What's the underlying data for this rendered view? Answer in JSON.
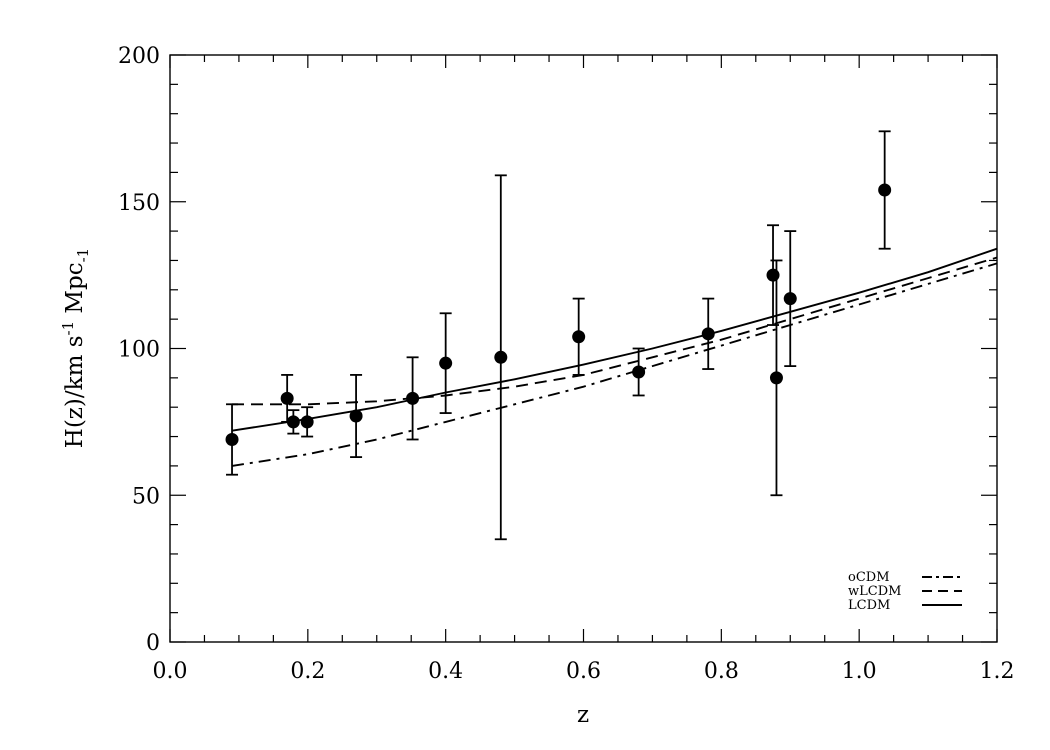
{
  "chart_data": {
    "type": "scatter",
    "xlabel": "z",
    "ylabel": "H(z)/km s^-1 Mpc_-1",
    "ylabel_parts": {
      "main": "H(z)/km s",
      "sup": "-1",
      "mid": " Mpc",
      "sub": "-1"
    },
    "xlim": [
      0.0,
      1.2
    ],
    "ylim": [
      0,
      200
    ],
    "x_ticks": [
      0.0,
      0.2,
      0.4,
      0.6,
      0.8,
      1.0,
      1.2
    ],
    "x_tick_labels": [
      "0.0",
      "0.2",
      "0.4",
      "0.6",
      "0.8",
      "1.0",
      "1.2"
    ],
    "y_ticks": [
      0,
      50,
      100,
      150,
      200
    ],
    "y_tick_labels": [
      "0",
      "50",
      "100",
      "150",
      "200"
    ],
    "grid": false,
    "legend_position": "bottom-right",
    "points": [
      {
        "x": 0.09,
        "y": 69,
        "err": 12
      },
      {
        "x": 0.17,
        "y": 83,
        "err": 8
      },
      {
        "x": 0.179,
        "y": 75,
        "err": 4
      },
      {
        "x": 0.199,
        "y": 75,
        "err": 5
      },
      {
        "x": 0.27,
        "y": 77,
        "err": 14
      },
      {
        "x": 0.352,
        "y": 83,
        "err": 14
      },
      {
        "x": 0.4,
        "y": 95,
        "err": 17
      },
      {
        "x": 0.48,
        "y": 97,
        "err": 62
      },
      {
        "x": 0.593,
        "y": 104,
        "err": 13
      },
      {
        "x": 0.68,
        "y": 92,
        "err": 8
      },
      {
        "x": 0.781,
        "y": 105,
        "err": 12
      },
      {
        "x": 0.875,
        "y": 125,
        "err": 17
      },
      {
        "x": 0.88,
        "y": 90,
        "err": 40
      },
      {
        "x": 0.9,
        "y": 117,
        "err": 23
      },
      {
        "x": 1.037,
        "y": 154,
        "err": 20
      }
    ],
    "series": [
      {
        "name": "oCDM",
        "dash": "dashdot",
        "x": [
          0.09,
          0.2,
          0.3,
          0.4,
          0.5,
          0.6,
          0.7,
          0.8,
          0.9,
          1.0,
          1.1,
          1.2
        ],
        "y": [
          60,
          64,
          69,
          75,
          81,
          87,
          94,
          101,
          108,
          115,
          122,
          129
        ]
      },
      {
        "name": "wLCDM",
        "dash": "dash",
        "x": [
          0.09,
          0.2,
          0.3,
          0.4,
          0.5,
          0.6,
          0.7,
          0.8,
          0.9,
          1.0,
          1.1,
          1.2
        ],
        "y": [
          81,
          81,
          82,
          84,
          87,
          91,
          97,
          103,
          110,
          117,
          124,
          131
        ]
      },
      {
        "name": "LCDM",
        "dash": "solid",
        "x": [
          0.09,
          0.2,
          0.3,
          0.4,
          0.5,
          0.6,
          0.7,
          0.8,
          0.9,
          1.0,
          1.1,
          1.2
        ],
        "y": [
          72,
          76,
          80,
          85,
          89.5,
          94.5,
          100,
          106,
          112.5,
          119,
          126,
          134
        ]
      }
    ]
  }
}
